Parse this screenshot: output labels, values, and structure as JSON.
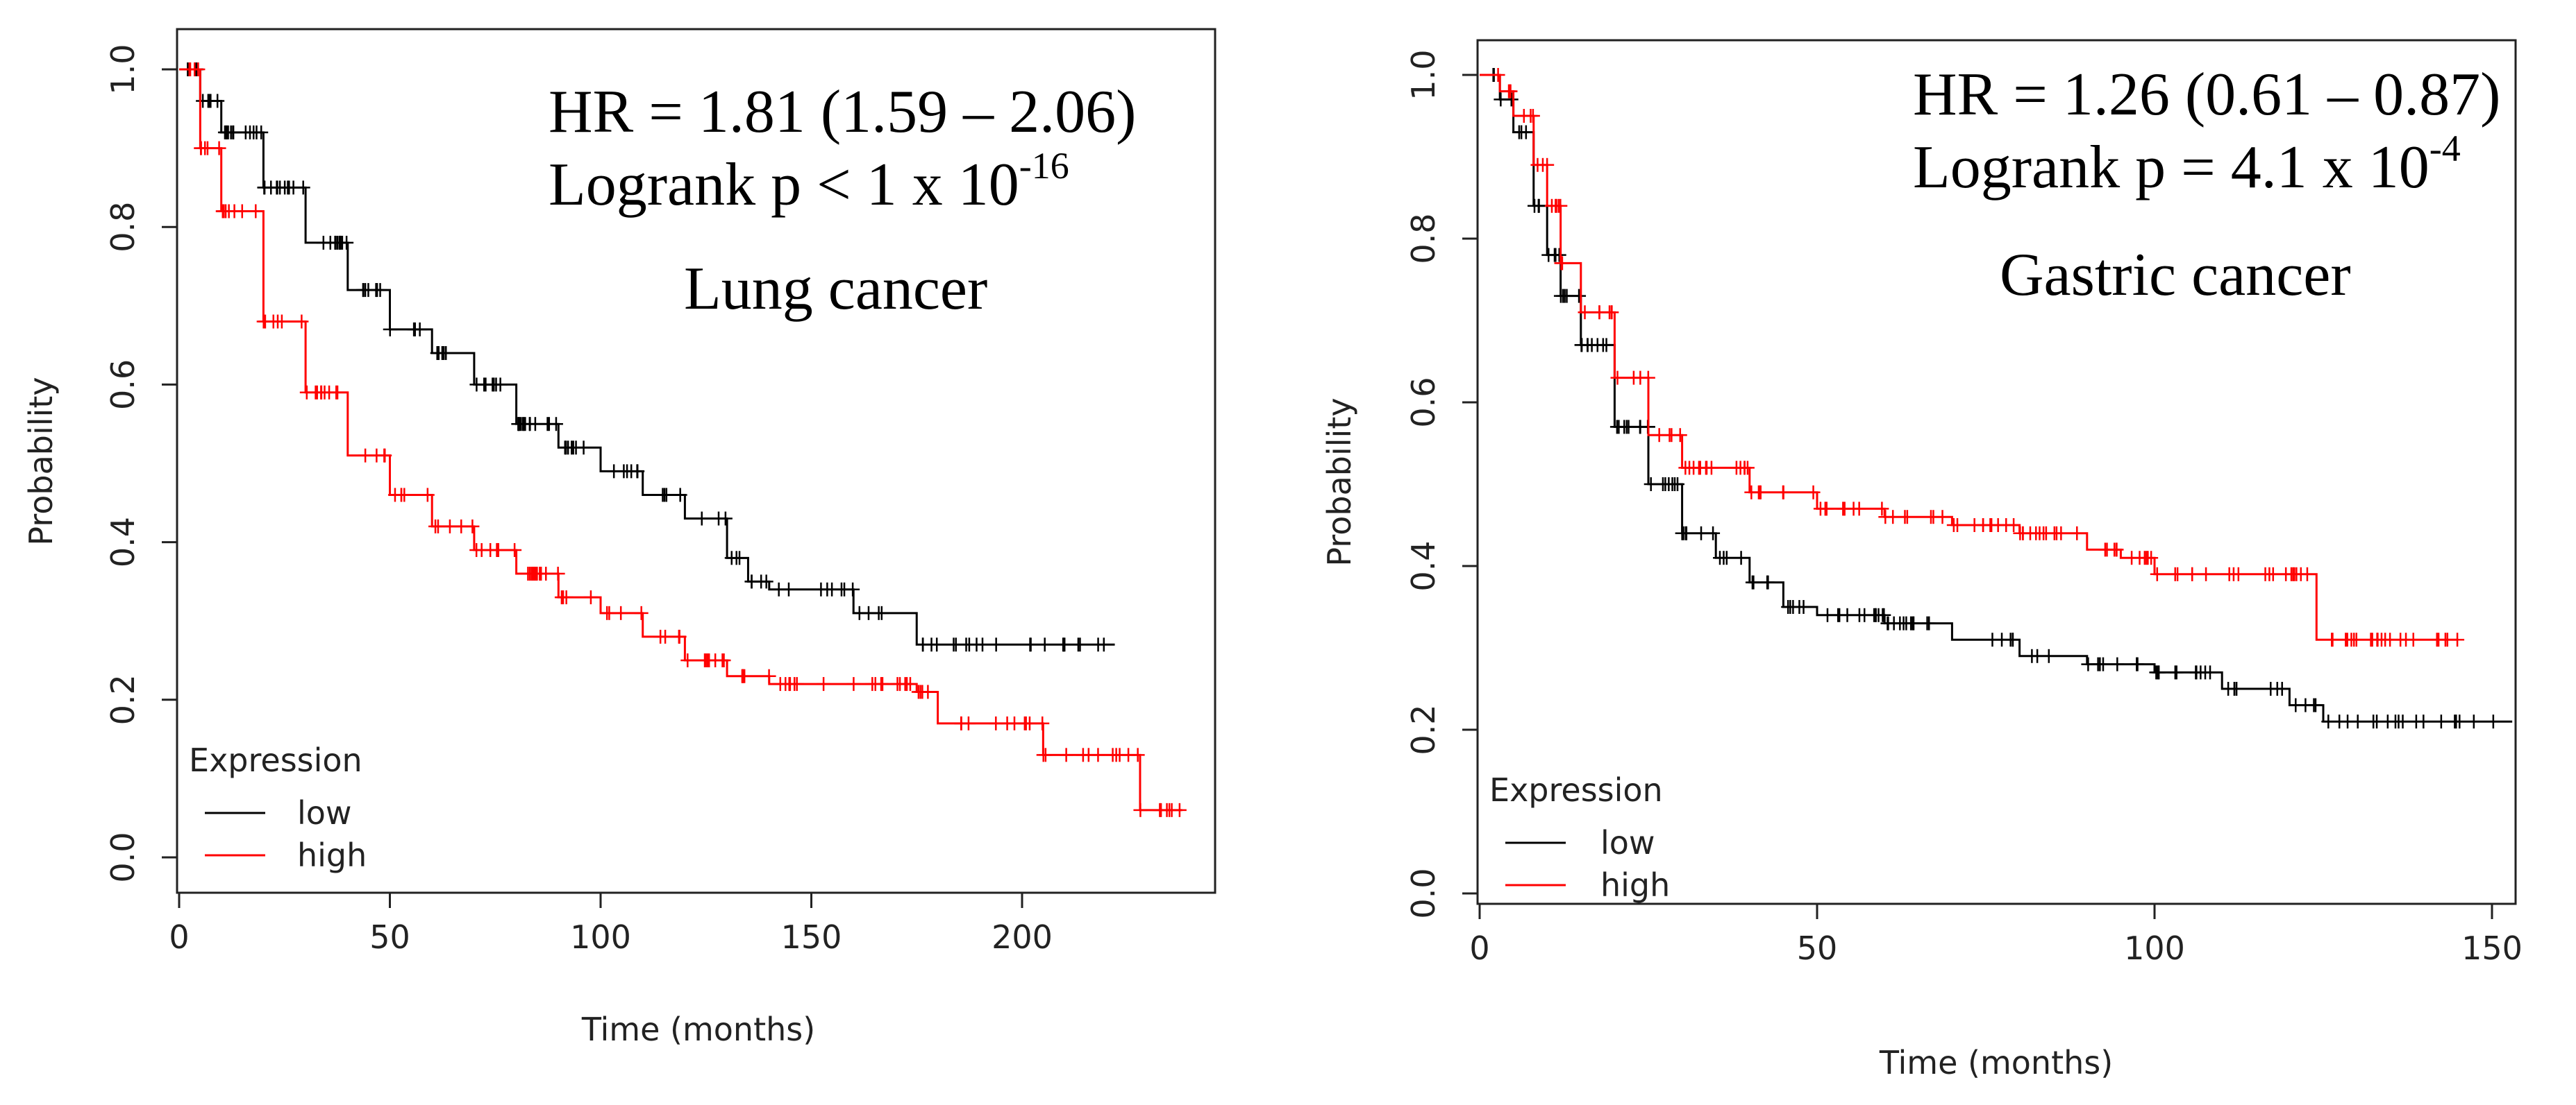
{
  "chart_data": [
    {
      "type": "line",
      "subtype": "kaplan-meier",
      "title": "",
      "xlabel": "Time (months)",
      "ylabel": "Probability",
      "xlim": [
        0,
        245
      ],
      "ylim": [
        0,
        1
      ],
      "xticks": [
        "0",
        "50",
        "100",
        "150",
        "200"
      ],
      "yticks": [
        "0.0",
        "0.2",
        "0.4",
        "0.6",
        "0.8",
        "1.0"
      ],
      "grid": false,
      "legend": {
        "title": "Expression",
        "position": "bottom-left"
      },
      "annotation": {
        "hr": "HR = 1.81 (1.59 – 2.06)",
        "logrank_prefix": "Logrank p < 1 x 10",
        "logrank_exp": "-16",
        "label": "Lung cancer"
      },
      "series": [
        {
          "name": "low",
          "color": "#000000",
          "x": [
            0,
            5,
            10,
            20,
            30,
            40,
            50,
            60,
            70,
            80,
            90,
            100,
            110,
            120,
            130,
            135,
            140,
            160,
            175,
            222
          ],
          "y": [
            1.0,
            0.96,
            0.92,
            0.85,
            0.78,
            0.72,
            0.67,
            0.64,
            0.6,
            0.55,
            0.52,
            0.49,
            0.46,
            0.43,
            0.38,
            0.35,
            0.34,
            0.31,
            0.27,
            0.27
          ]
        },
        {
          "name": "high",
          "color": "#ff0000",
          "x": [
            0,
            5,
            10,
            20,
            30,
            40,
            50,
            60,
            70,
            80,
            90,
            100,
            110,
            120,
            130,
            140,
            150,
            160,
            175,
            180,
            200,
            205,
            220,
            228,
            238
          ],
          "y": [
            1.0,
            0.9,
            0.82,
            0.68,
            0.59,
            0.51,
            0.46,
            0.42,
            0.39,
            0.36,
            0.33,
            0.31,
            0.28,
            0.25,
            0.23,
            0.22,
            0.22,
            0.22,
            0.21,
            0.17,
            0.17,
            0.13,
            0.13,
            0.06,
            0.06
          ]
        }
      ]
    },
    {
      "type": "line",
      "subtype": "kaplan-meier",
      "title": "",
      "xlabel": "Time (months)",
      "ylabel": "Probability",
      "xlim": [
        0,
        155
      ],
      "ylim": [
        0,
        1
      ],
      "xticks": [
        "0",
        "50",
        "100",
        "150"
      ],
      "yticks": [
        "0.0",
        "0.2",
        "0.4",
        "0.6",
        "0.8",
        "1.0"
      ],
      "grid": false,
      "legend": {
        "title": "Expression",
        "position": "bottom-left"
      },
      "annotation": {
        "hr": "HR = 1.26 (0.61 – 0.87)",
        "logrank_prefix": "Logrank p = 4.1 x 10",
        "logrank_exp": "-4",
        "label": "Gastric cancer"
      },
      "series": [
        {
          "name": "low",
          "color": "#000000",
          "x": [
            0,
            3,
            5,
            8,
            10,
            12,
            15,
            20,
            25,
            30,
            35,
            40,
            45,
            50,
            60,
            70,
            80,
            90,
            100,
            110,
            120,
            125,
            153
          ],
          "y": [
            1.0,
            0.97,
            0.93,
            0.84,
            0.78,
            0.73,
            0.67,
            0.57,
            0.5,
            0.44,
            0.41,
            0.38,
            0.35,
            0.34,
            0.33,
            0.31,
            0.29,
            0.28,
            0.27,
            0.25,
            0.23,
            0.21,
            0.21
          ]
        },
        {
          "name": "high",
          "color": "#ff0000",
          "x": [
            0,
            3,
            5,
            8,
            10,
            12,
            15,
            20,
            25,
            30,
            40,
            50,
            60,
            70,
            80,
            90,
            95,
            100,
            110,
            123,
            124,
            145
          ],
          "y": [
            1.0,
            0.98,
            0.95,
            0.89,
            0.84,
            0.77,
            0.71,
            0.63,
            0.56,
            0.52,
            0.49,
            0.47,
            0.46,
            0.45,
            0.44,
            0.42,
            0.41,
            0.39,
            0.39,
            0.39,
            0.31,
            0.31
          ]
        }
      ]
    }
  ]
}
